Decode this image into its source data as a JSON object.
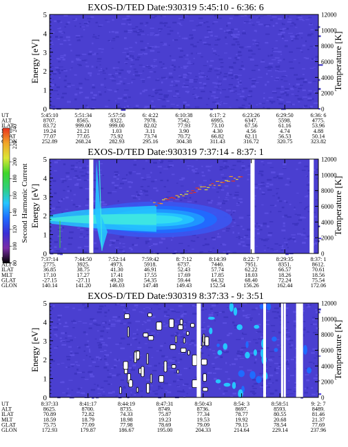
{
  "chart_data": [
    {
      "type": "heatmap",
      "title": "EXOS-D/TED   Date:930319  5:45:10 - 6:36: 6",
      "ylabel": "Energy [eV]",
      "y2label": "Temperature [K]",
      "ylim": [
        0,
        5
      ],
      "y2lim": [
        0,
        12000
      ],
      "yticks": [
        "0",
        "1",
        "2",
        "3",
        "4",
        "5"
      ],
      "y2ticks": [
        "0",
        "2000",
        "4000",
        "6000",
        "8000",
        "10000",
        "12000"
      ],
      "field": "uniform",
      "base_color": "#4a3fd0",
      "row_labels": [
        "UT",
        "ALT",
        "ILAT",
        "MLT",
        "GLAT",
        "GLON"
      ],
      "columns": [
        [
          "5:45:10",
          "8707.",
          "83.72",
          "19.24",
          "77.07",
          "252.89"
        ],
        [
          "5:51:34",
          "8565.",
          "999.00",
          "21.21",
          "77.05",
          "268.24"
        ],
        [
          "5:57:58",
          "8322.",
          "999.00",
          "1.03",
          "75.92",
          "282.93"
        ],
        [
          "6: 4:22",
          "7978.",
          "82.02",
          "3.11",
          "73.74",
          "295.16"
        ],
        [
          "6:10:38",
          "7542.",
          "77.93",
          "3.90",
          "70.72",
          "304.38"
        ],
        [
          "6:17: 2",
          "6995.",
          "73.10",
          "4.30",
          "66.82",
          "311.43"
        ],
        [
          "6:23:26",
          "6347.",
          "67.56",
          "4.56",
          "62.11",
          "316.72"
        ],
        [
          "6:29:50",
          "5598.",
          "61.16",
          "4.74",
          "56.53",
          "320.75"
        ],
        [
          "6:36: 6",
          "4775.",
          "53.96",
          "4.88",
          "50.14",
          "323.82"
        ]
      ]
    },
    {
      "type": "heatmap",
      "title": "EXOS-D/TED   Date:930319  7:37:14 - 8:37: 1",
      "ylabel": "Energy [eV]",
      "y2label": "Temperature [K]",
      "ylim": [
        0,
        5
      ],
      "y2lim": [
        0,
        12000
      ],
      "yticks": [
        "0",
        "1",
        "2",
        "3",
        "4",
        "5"
      ],
      "y2ticks": [
        "0",
        "2000",
        "4000",
        "6000",
        "8000",
        "10000",
        "12000"
      ],
      "field": "band",
      "band_center_ev": 1.8,
      "data_gaps_fraction": [
        0.155,
        0.755,
        0.975
      ],
      "row_labels": [
        "UT",
        "ALT",
        "ILAT",
        "MLT",
        "GLAT",
        "GLON"
      ],
      "columns": [
        [
          "7:37:14",
          "2775.",
          "36.85",
          "17.10",
          "-27.15",
          "140.14"
        ],
        [
          "7:44:50",
          "3925.",
          "38.75",
          "17.27",
          "-27.11",
          "141.20"
        ],
        [
          "7:52:14",
          "4973.",
          "41.30",
          "17.41",
          "49.20",
          "146.03"
        ],
        [
          "7:59:42",
          "5918.",
          "46.91",
          "17.55",
          "54.35",
          "147.48"
        ],
        [
          "8: 7:12",
          "6737.",
          "52.43",
          "17.69",
          "59.44",
          "149.43"
        ],
        [
          "8:14:39",
          "7440.",
          "57.74",
          "17.85",
          "64.32",
          "152.54"
        ],
        [
          "8:22: 7",
          "7951.",
          "62.22",
          "18.03",
          "68.40",
          "156.26"
        ],
        [
          "8:29:35",
          "8351.",
          "66.57",
          "18.26",
          "72.24",
          "162.44"
        ],
        [
          "8:37: 1",
          "8612.",
          "70.61",
          "18.56",
          "75.54",
          "172.06"
        ]
      ],
      "colorbar": {
        "label": "Second Harmonic Current",
        "ticks": [
          "80",
          "100",
          "120",
          "140",
          "160",
          "180",
          "200",
          "220",
          "240"
        ],
        "colors": [
          "#000000",
          "#7a2ca8",
          "#3a2fd6",
          "#1f6bff",
          "#25c6ff",
          "#2fd07a",
          "#3fd62a",
          "#dbe635",
          "#f1a528",
          "#e8321e"
        ]
      }
    },
    {
      "type": "heatmap",
      "title": "EXOS-D/TED   Date:930319  8:37:33 - 9: 3:51",
      "ylabel": "Energy [eV]",
      "y2label": "Temperature [K]",
      "ylim": [
        0,
        5
      ],
      "y2lim": [
        0,
        12000
      ],
      "yticks": [
        "0",
        "1",
        "2",
        "3",
        "4",
        "5"
      ],
      "y2ticks": [
        "0",
        "2000",
        "4000",
        "6000",
        "8000",
        "10000",
        "12000"
      ],
      "field": "patchy",
      "data_gaps_fraction": [
        0.555,
        0.8,
        0.865,
        0.875,
        0.93
      ],
      "row_labels": [
        "UT",
        "ALT",
        "ILAT",
        "MLT",
        "GLAT",
        "GLON"
      ],
      "columns": [
        [
          "8:37:33",
          "8625.",
          "70.89",
          "18.59",
          "75.75",
          "172.93"
        ],
        [
          "8:41:17",
          "8700.",
          "72.82",
          "18.79",
          "77.09",
          "179.87"
        ],
        [
          "8:44:19",
          "8735.",
          "74.33",
          "18.98",
          "77.98",
          "186.67"
        ],
        [
          "8:47:31",
          "8749.",
          "75.87",
          "19.23",
          "78.69",
          "195.00"
        ],
        [
          "8:50:43",
          "8736.",
          "77.34",
          "19.53",
          "79.09",
          "204.33"
        ],
        [
          "8:54: 3",
          "8697.",
          "78.77",
          "19.92",
          "79.15",
          "214.64"
        ],
        [
          "8:58:51",
          "8593.",
          "80.55",
          "20.68",
          "78.54",
          "229.14"
        ],
        [
          "9: 2: 7",
          "8489.",
          "81.46",
          "21.37",
          "77.69",
          "237.96"
        ]
      ]
    }
  ]
}
